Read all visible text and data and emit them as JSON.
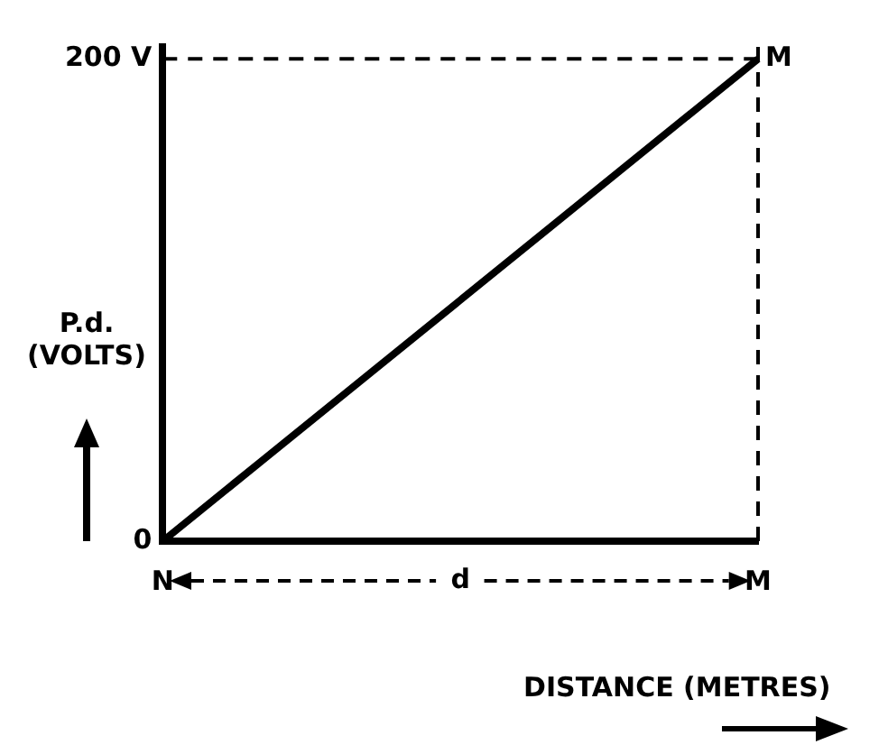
{
  "chart_data": {
    "type": "line",
    "xlabel": "DISTANCE (METRES)",
    "ylabel": "P.d. (VOLTS)",
    "categories": [
      "N",
      "M"
    ],
    "series": [
      {
        "color": "#000000",
        "values": [
          0,
          200
        ]
      }
    ],
    "ylim": [
      0,
      205
    ],
    "yticks": [
      0,
      {
        "value": 200,
        "label": "200 V"
      }
    ],
    "ref_lines": [
      {
        "axis": "y",
        "value": 200,
        "color": "#000000",
        "line_style": "dashed"
      },
      {
        "axis": "x",
        "value": "M",
        "color": "#000000",
        "line_style": "dashed"
      }
    ],
    "annotations": [
      {
        "text": "M",
        "x": "M",
        "y": 200
      },
      "d"
    ],
    "grid": false,
    "legend": false,
    "marker": "none",
    "line_style": "solid"
  }
}
